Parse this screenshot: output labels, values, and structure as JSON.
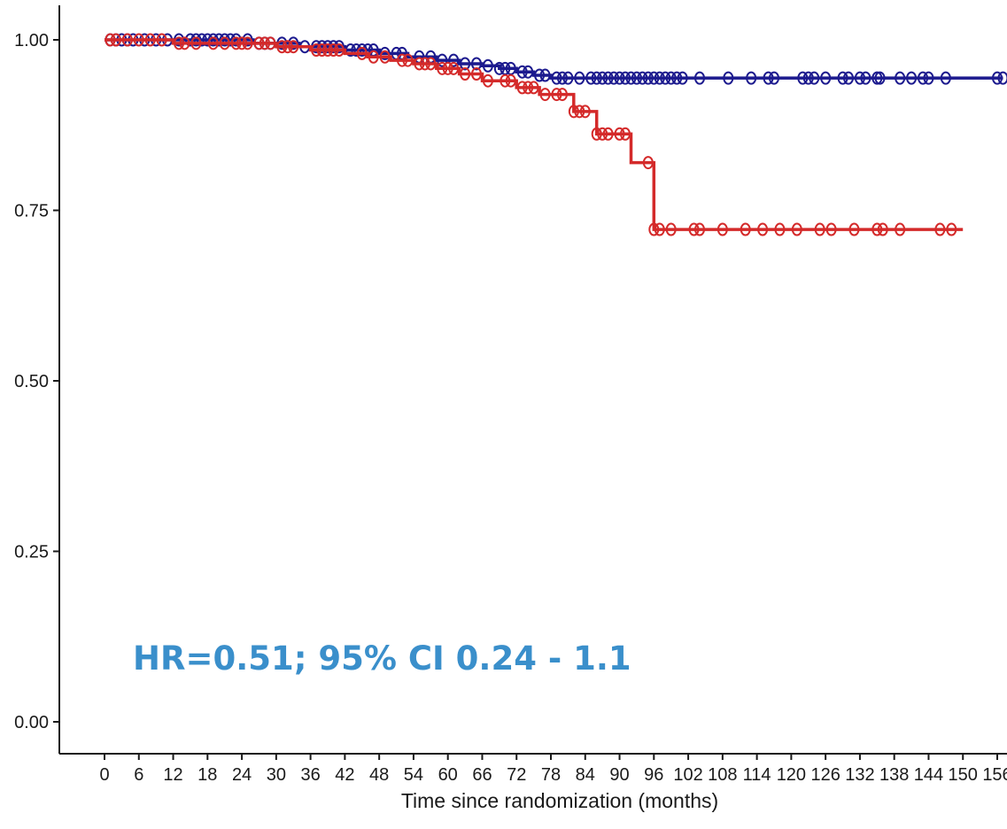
{
  "chart_data": {
    "type": "line",
    "title": "",
    "xlabel": "Time since randomization (months)",
    "ylabel": "",
    "xlim": [
      -8,
      160
    ],
    "ylim": [
      -0.05,
      1.05
    ],
    "x_ticks": [
      0,
      6,
      12,
      18,
      24,
      30,
      36,
      42,
      48,
      54,
      60,
      66,
      72,
      78,
      84,
      90,
      96,
      102,
      108,
      114,
      120,
      126,
      132,
      138,
      144,
      150,
      156
    ],
    "y_ticks": [
      "0.00",
      "0.25",
      "0.50",
      "0.75",
      "1.00"
    ],
    "grid": false,
    "legend": "none",
    "annotation": "HR=0.51; 95% CI 0.24 - 1.1",
    "annotation_color": "#3a8fcb",
    "series": [
      {
        "color": "#1c1a8e",
        "steps": [
          [
            0,
            1.0
          ],
          [
            26,
            0.995
          ],
          [
            34,
            0.99
          ],
          [
            42,
            0.985
          ],
          [
            48,
            0.98
          ],
          [
            53,
            0.975
          ],
          [
            58,
            0.97
          ],
          [
            62,
            0.965
          ],
          [
            66,
            0.962
          ],
          [
            69,
            0.958
          ],
          [
            72,
            0.953
          ],
          [
            75,
            0.948
          ],
          [
            78,
            0.944
          ]
        ],
        "end": 157,
        "censored": [
          1,
          2,
          3,
          4,
          5,
          7,
          9,
          11,
          13,
          15,
          16,
          17,
          18,
          19,
          20,
          21,
          22,
          23,
          25,
          27,
          28,
          29,
          31,
          33,
          35,
          37,
          38,
          39,
          40,
          41,
          43,
          44,
          45,
          46,
          47,
          49,
          51,
          52,
          55,
          57,
          59,
          61,
          63,
          65,
          67,
          69,
          70,
          71,
          73,
          74,
          76,
          77,
          79,
          80,
          81,
          83,
          85,
          86,
          87,
          88,
          89,
          90,
          91,
          92,
          93,
          94,
          95,
          96,
          97,
          98,
          99,
          100,
          101,
          104,
          109,
          113,
          116,
          117,
          122,
          123,
          124,
          126,
          129,
          130,
          132,
          133,
          135,
          135.5,
          139,
          141,
          143,
          144,
          147,
          156,
          157
        ]
      },
      {
        "color": "#d42a2a",
        "steps": [
          [
            0,
            1.0
          ],
          [
            12,
            0.995
          ],
          [
            30,
            0.99
          ],
          [
            36,
            0.985
          ],
          [
            42,
            0.98
          ],
          [
            46,
            0.975
          ],
          [
            50,
            0.97
          ],
          [
            54,
            0.965
          ],
          [
            58,
            0.958
          ],
          [
            62,
            0.95
          ],
          [
            66,
            0.94
          ],
          [
            72,
            0.93
          ],
          [
            76,
            0.92
          ],
          [
            82,
            0.895
          ],
          [
            86,
            0.862
          ],
          [
            92,
            0.82
          ],
          [
            96,
            0.722
          ]
        ],
        "end": 150,
        "censored": [
          1,
          2,
          4,
          6,
          8,
          10,
          13,
          14,
          16,
          19,
          21,
          23,
          24,
          25,
          27,
          28,
          29,
          31,
          32,
          33,
          37,
          38,
          39,
          40,
          41,
          45,
          47,
          49,
          52,
          53,
          55,
          56,
          57,
          59,
          60,
          61,
          63,
          65,
          67,
          70,
          71,
          73,
          74,
          75,
          77,
          79,
          80,
          82,
          83,
          84,
          86,
          87,
          88,
          90,
          91,
          95,
          96,
          97,
          99,
          103,
          104,
          108,
          112,
          115,
          118,
          121,
          125,
          127,
          131,
          135,
          136,
          139,
          146,
          148
        ]
      }
    ]
  }
}
